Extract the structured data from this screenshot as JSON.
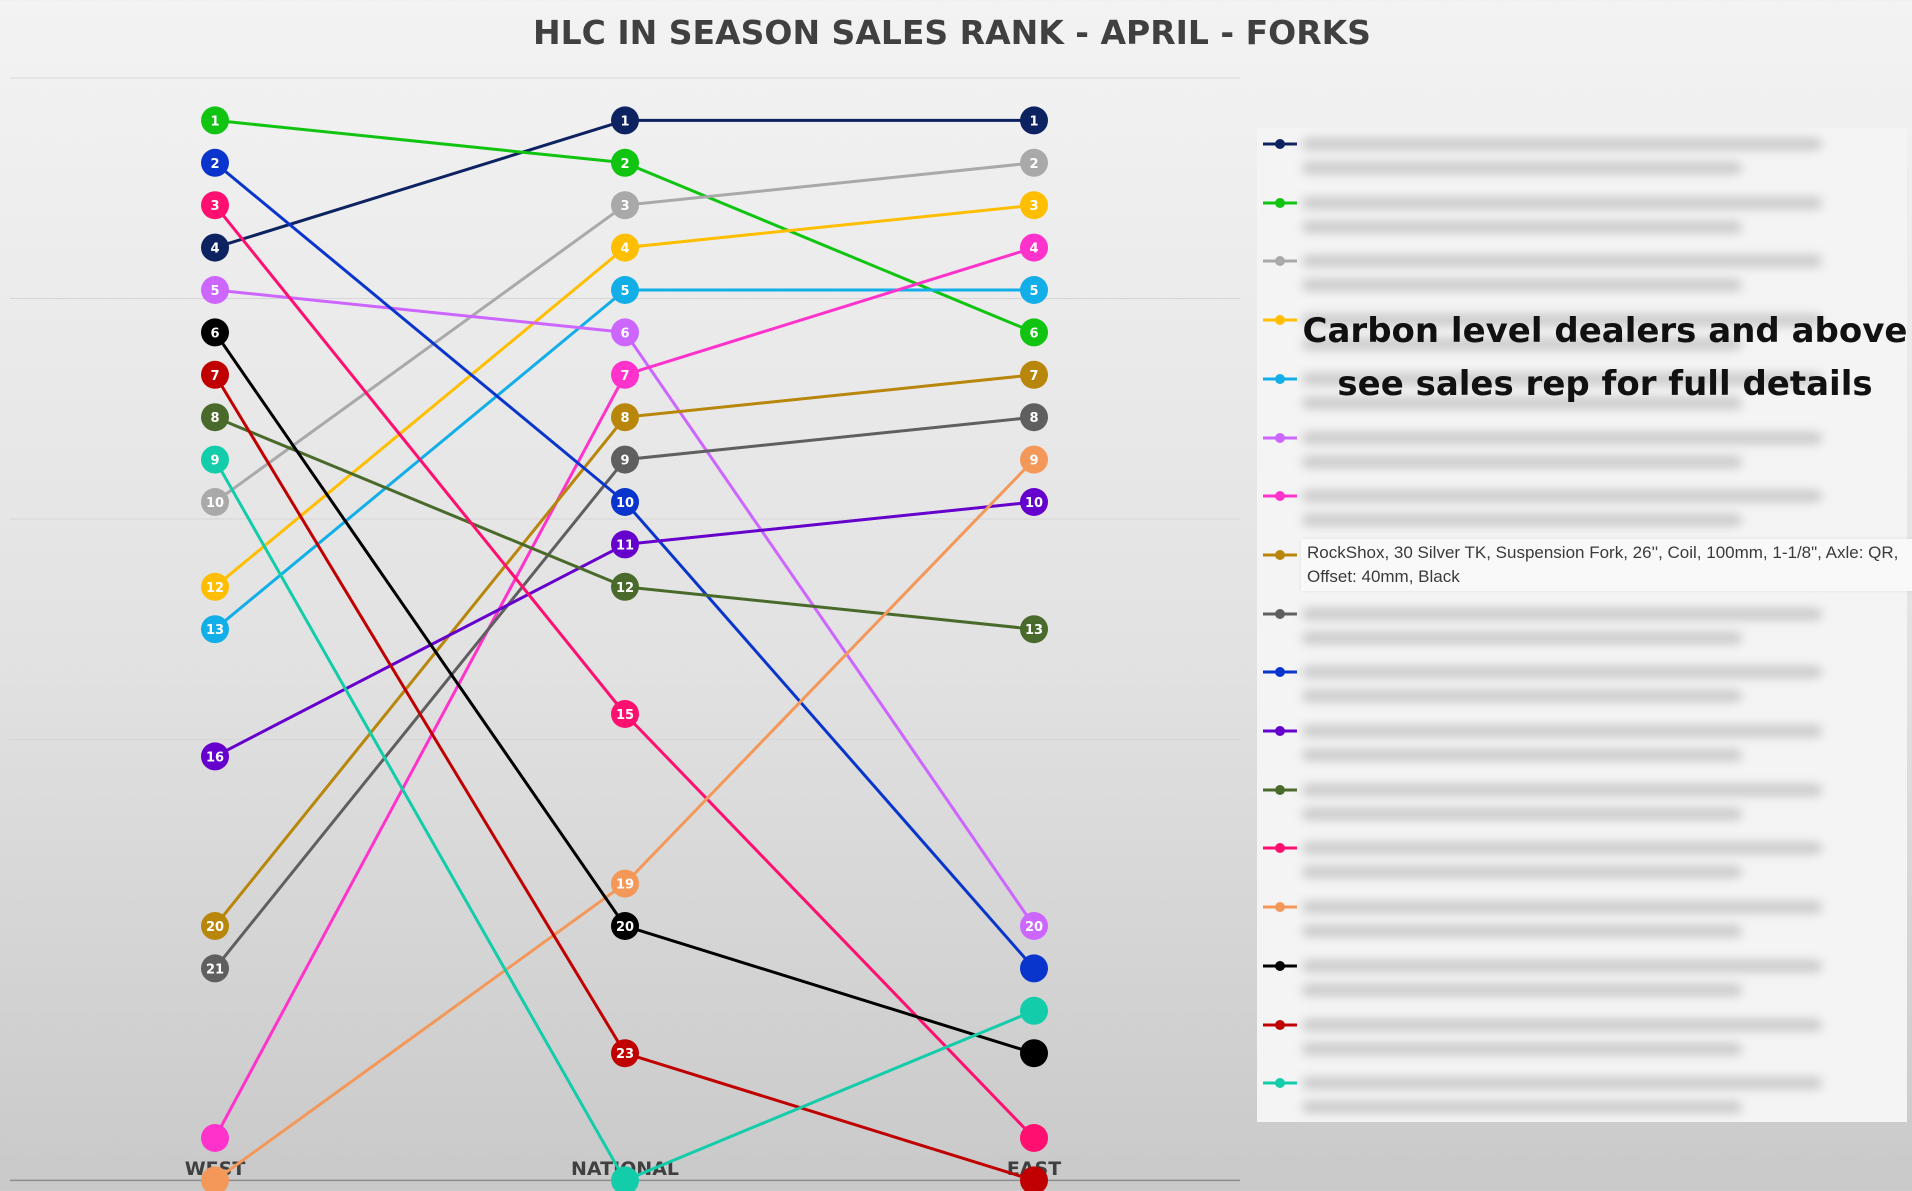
{
  "chart_data": {
    "type": "line",
    "title": "HLC IN SEASON SALES RANK - APRIL - FORKS",
    "categories": [
      "WEST",
      "NATIONAL",
      "EAST"
    ],
    "y_axis": "rank (1 at top, reversed)",
    "ylim": [
      26,
      0
    ],
    "grid": "horizontal",
    "series": [
      {
        "color": "#0d2260",
        "values": [
          4,
          1,
          1
        ],
        "labels": [
          "4",
          "1",
          "1"
        ]
      },
      {
        "color": "#11c411",
        "values": [
          1,
          2,
          6
        ],
        "labels": [
          "1",
          "2",
          "6"
        ]
      },
      {
        "color": "#a9a9a9",
        "values": [
          10,
          3,
          2
        ],
        "labels": [
          "10",
          "3",
          "2"
        ]
      },
      {
        "color": "#ffbe00",
        "values": [
          12,
          4,
          3
        ],
        "labels": [
          "12",
          "4",
          "3"
        ]
      },
      {
        "color": "#12aee8",
        "values": [
          13,
          5,
          5
        ],
        "labels": [
          "13",
          "5",
          "5"
        ]
      },
      {
        "color": "#cc66ff",
        "values": [
          5,
          6,
          20
        ],
        "labels": [
          "5",
          "6",
          "20"
        ]
      },
      {
        "color": "#ff33cc",
        "values": [
          25,
          7,
          4
        ],
        "labels": [
          "",
          "7",
          "4"
        ]
      },
      {
        "name": "RockShox, 30 Silver TK, Suspension Fork, 26'', Coil, 100mm, 1-1/8\", Axle: QR, Offset: 40mm, Black",
        "color": "#b8860b",
        "values": [
          20,
          8,
          7
        ],
        "labels": [
          "20",
          "8",
          "7"
        ]
      },
      {
        "color": "#5f5f5f",
        "values": [
          21,
          9,
          8
        ],
        "labels": [
          "21",
          "9",
          "8"
        ]
      },
      {
        "color": "#0a35cc",
        "values": [
          2,
          10,
          21
        ],
        "labels": [
          "2",
          "10",
          ""
        ]
      },
      {
        "color": "#6600cc",
        "values": [
          16,
          11,
          10
        ],
        "labels": [
          "16",
          "11",
          "10"
        ]
      },
      {
        "color": "#4a6a2c",
        "values": [
          8,
          12,
          13
        ],
        "labels": [
          "8",
          "12",
          "13"
        ]
      },
      {
        "color": "#ff0f6f",
        "values": [
          3,
          15,
          25
        ],
        "labels": [
          "3",
          "15",
          ""
        ]
      },
      {
        "color": "#f4985a",
        "values": [
          26,
          19,
          9
        ],
        "labels": [
          "",
          "19",
          "9"
        ]
      },
      {
        "color": "#000000",
        "values": [
          6,
          20,
          23
        ],
        "labels": [
          "6",
          "20",
          ""
        ]
      },
      {
        "color": "#c00000",
        "values": [
          7,
          23,
          26
        ],
        "labels": [
          "7",
          "23",
          ""
        ]
      },
      {
        "color": "#13ccaa",
        "values": [
          9,
          26,
          22
        ],
        "labels": [
          "9",
          "",
          ""
        ]
      }
    ]
  },
  "annotation": {
    "line1": "Carbon level dealers and above",
    "line2": "see sales rep for full details"
  }
}
